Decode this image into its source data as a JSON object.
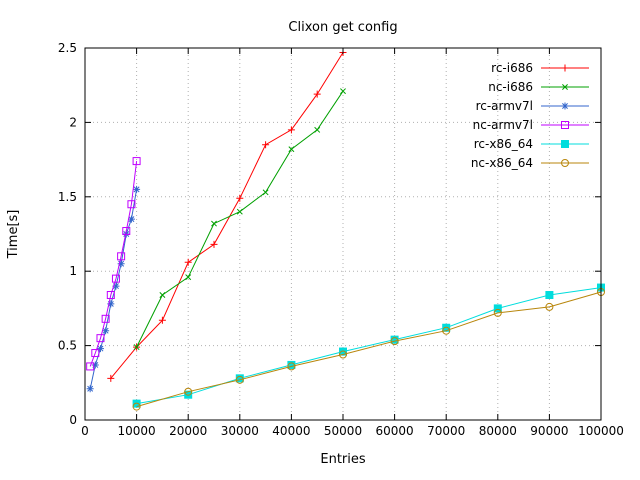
{
  "chart_data": {
    "type": "line",
    "title": "Clixon get config",
    "xlabel": "Entries",
    "ylabel": "Time[s]",
    "xlim": [
      0,
      100000
    ],
    "ylim": [
      0,
      2.5
    ],
    "xticks": [
      0,
      10000,
      20000,
      30000,
      40000,
      50000,
      60000,
      70000,
      80000,
      90000,
      100000
    ],
    "xtick_labels": [
      "0",
      "10000",
      "20000",
      "30000",
      "40000",
      "50000",
      "60000",
      "70000",
      "80000",
      "90000",
      "100000"
    ],
    "yticks": [
      0,
      0.5,
      1,
      1.5,
      2,
      2.5
    ],
    "ytick_labels": [
      "0",
      "0.5",
      "1",
      "1.5",
      "2",
      "2.5"
    ],
    "grid": true,
    "legend_position": "top-right-inside",
    "style": {
      "background": "#ffffff",
      "border_color": "#000000",
      "grid_color": "#b0b0b0",
      "text_color": "#000000"
    },
    "series": [
      {
        "name": "rc-i686",
        "color": "#ff0000",
        "marker": "plus",
        "x": [
          5000,
          10000,
          15000,
          20000,
          25000,
          30000,
          35000,
          40000,
          45000,
          50000
        ],
        "y": [
          0.28,
          0.49,
          0.67,
          1.06,
          1.18,
          1.49,
          1.85,
          1.95,
          2.19,
          2.47
        ]
      },
      {
        "name": "nc-i686",
        "color": "#00a000",
        "marker": "cross",
        "x": [
          10000,
          15000,
          20000,
          25000,
          30000,
          35000,
          40000,
          45000,
          50000
        ],
        "y": [
          0.49,
          0.84,
          0.96,
          1.32,
          1.4,
          1.53,
          1.82,
          1.95,
          2.21
        ]
      },
      {
        "name": "rc-armv7l",
        "color": "#3366cc",
        "marker": "asterisk",
        "x": [
          1000,
          2000,
          3000,
          4000,
          5000,
          6000,
          7000,
          8000,
          9000,
          10000
        ],
        "y": [
          0.21,
          0.37,
          0.48,
          0.6,
          0.78,
          0.9,
          1.05,
          1.25,
          1.35,
          1.55
        ]
      },
      {
        "name": "nc-armv7l",
        "color": "#c000ff",
        "marker": "square-open",
        "x": [
          1000,
          2000,
          3000,
          4000,
          5000,
          6000,
          7000,
          8000,
          9000,
          10000
        ],
        "y": [
          0.36,
          0.45,
          0.55,
          0.68,
          0.84,
          0.95,
          1.1,
          1.27,
          1.45,
          1.74
        ]
      },
      {
        "name": "rc-x86_64",
        "color": "#00dddd",
        "marker": "square-filled",
        "x": [
          10000,
          20000,
          30000,
          40000,
          50000,
          60000,
          70000,
          80000,
          90000,
          100000
        ],
        "y": [
          0.11,
          0.17,
          0.28,
          0.37,
          0.46,
          0.54,
          0.62,
          0.75,
          0.84,
          0.89
        ]
      },
      {
        "name": "nc-x86_64",
        "color": "#b8860b",
        "marker": "circle-open",
        "x": [
          10000,
          20000,
          30000,
          40000,
          50000,
          60000,
          70000,
          80000,
          90000,
          100000
        ],
        "y": [
          0.09,
          0.19,
          0.27,
          0.36,
          0.44,
          0.53,
          0.6,
          0.72,
          0.76,
          0.86
        ]
      }
    ]
  }
}
